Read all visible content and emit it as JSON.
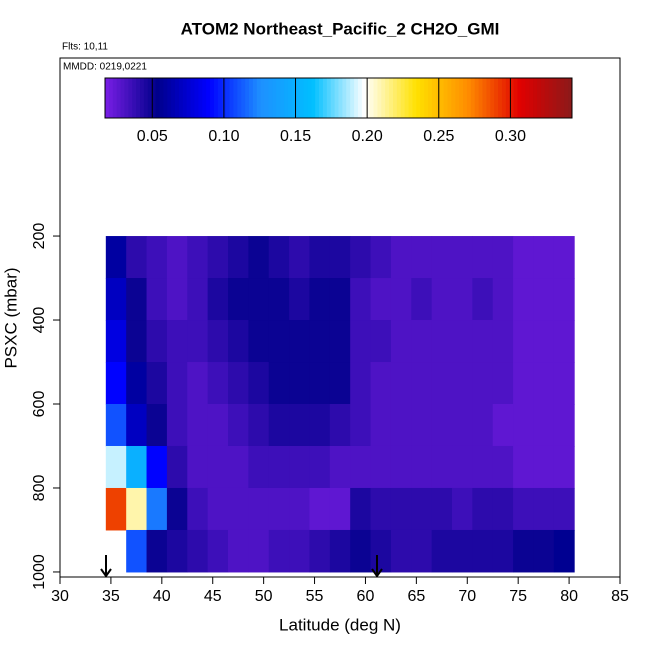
{
  "chart_data": {
    "type": "heatmap",
    "title": "ATOM2 Northeast_Pacific_2 CH2O_GMI",
    "annotations": [
      "Flts: 10,11",
      "MMDD: 0219,0221"
    ],
    "xlabel": "Latitude (deg N)",
    "ylabel": "PSXC (mbar)",
    "xlim": [
      30,
      85
    ],
    "xticks": [
      30,
      35,
      40,
      45,
      50,
      55,
      60,
      65,
      70,
      75,
      80,
      85
    ],
    "ylim": [
      1012,
      -224
    ],
    "yticks": [
      200,
      400,
      600,
      800,
      1000
    ],
    "x_edges": [
      34.5,
      36.5,
      38.5,
      40.5,
      42.5,
      44.5,
      46.5,
      48.5,
      50.5,
      52.5,
      54.5,
      56.5,
      58.5,
      60.5,
      62.5,
      64.5,
      66.5,
      68.5,
      70.5,
      72.5,
      74.5,
      76.5,
      78.5,
      80.5
    ],
    "y_edges": [
      200,
      300,
      400,
      500,
      600,
      700,
      800,
      900,
      1000
    ],
    "values": [
      [
        0.06,
        0.04,
        0.035,
        0.03,
        0.035,
        0.04,
        0.045,
        0.05,
        0.045,
        0.04,
        0.045,
        0.045,
        0.04,
        0.035,
        0.03,
        0.03,
        0.03,
        0.03,
        0.03,
        0.03,
        0.025,
        0.025,
        0.025
      ],
      [
        0.07,
        0.05,
        0.035,
        0.03,
        0.035,
        0.045,
        0.05,
        0.05,
        0.05,
        0.045,
        0.05,
        0.05,
        0.035,
        0.03,
        0.03,
        0.035,
        0.03,
        0.03,
        0.035,
        0.03,
        0.025,
        0.025,
        0.025
      ],
      [
        0.08,
        0.05,
        0.04,
        0.035,
        0.035,
        0.04,
        0.045,
        0.05,
        0.05,
        0.05,
        0.05,
        0.05,
        0.035,
        0.035,
        0.03,
        0.03,
        0.03,
        0.03,
        0.03,
        0.03,
        0.025,
        0.025,
        0.025
      ],
      [
        0.09,
        0.06,
        0.045,
        0.035,
        0.03,
        0.035,
        0.04,
        0.045,
        0.05,
        0.05,
        0.05,
        0.05,
        0.035,
        0.03,
        0.03,
        0.03,
        0.03,
        0.03,
        0.03,
        0.03,
        0.025,
        0.025,
        0.025
      ],
      [
        0.11,
        0.07,
        0.05,
        0.035,
        0.03,
        0.03,
        0.035,
        0.04,
        0.045,
        0.045,
        0.045,
        0.04,
        0.035,
        0.03,
        0.03,
        0.03,
        0.03,
        0.03,
        0.03,
        0.025,
        0.025,
        0.025,
        0.025
      ],
      [
        0.19,
        0.15,
        0.09,
        0.04,
        0.03,
        0.03,
        0.03,
        0.035,
        0.035,
        0.035,
        0.035,
        0.03,
        0.03,
        0.03,
        0.03,
        0.03,
        0.03,
        0.03,
        0.03,
        0.03,
        0.025,
        0.025,
        0.025
      ],
      [
        0.29,
        0.21,
        0.12,
        0.05,
        0.035,
        0.03,
        0.03,
        0.03,
        0.03,
        0.03,
        0.025,
        0.025,
        0.045,
        0.04,
        0.04,
        0.04,
        0.04,
        0.035,
        0.04,
        0.04,
        0.035,
        0.035,
        0.035
      ],
      [
        null,
        0.11,
        0.05,
        0.045,
        0.04,
        0.035,
        0.03,
        0.03,
        0.035,
        0.035,
        0.04,
        0.045,
        0.05,
        0.045,
        0.04,
        0.04,
        0.045,
        0.045,
        0.045,
        0.045,
        0.05,
        0.05,
        0.055
      ]
    ],
    "colorbar": {
      "lim": [
        0.017,
        0.343
      ],
      "ticks": [
        0.05,
        {
          "value": 0.1,
          "label": "0.10"
        },
        0.15,
        {
          "value": 0.2,
          "label": "0.20"
        },
        0.25,
        {
          "value": 0.3,
          "label": "0.30"
        }
      ],
      "colormap": [
        "#7a1ee6",
        "#00008b",
        "#0000ff",
        "#1e90ff",
        "#00bfff",
        "#ffffff",
        "#ffe100",
        "#ff8c00",
        "#e00000",
        "#8b1a1a"
      ]
    }
  }
}
